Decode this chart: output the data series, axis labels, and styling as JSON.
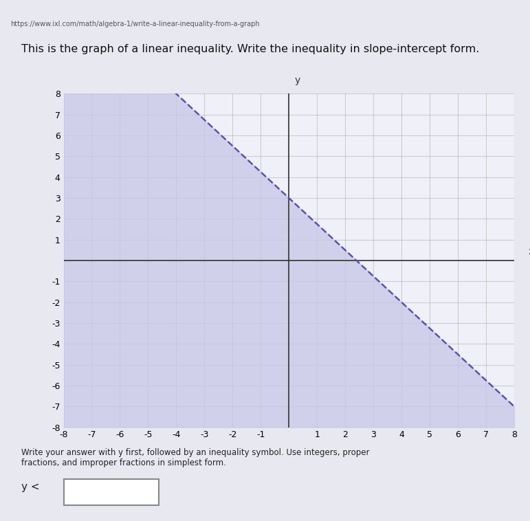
{
  "title": "This is the graph of a linear inequality. Write the inequality in slope-intercept form.",
  "slope": -1.25,
  "y_intercept": 3,
  "x_intercept": 2.4,
  "xlim": [
    -8,
    8
  ],
  "ylim": [
    -8,
    8
  ],
  "shade_color": "#c8c8e8",
  "shade_alpha": 0.55,
  "line_color": "#5555aa",
  "line_style": "--",
  "line_width": 1.8,
  "grid_color": "#aaaaaa",
  "grid_alpha": 0.5,
  "background_color": "#f0f0f8",
  "axis_color": "#555555",
  "tick_fontsize": 9,
  "inequality": "y < -5/4 x + 3",
  "answer_label": "y <",
  "answer_box_text": "y <",
  "url_text": "https://www.ixl.com/math/algebra-1/write-a-linear-inequality-from-a-graph",
  "subtitle": "Write your answer with y first, followed by an inequality symbol. Use integers, proper\nfractions, and improper fractions in simplest form.",
  "answer_prefix": "y <"
}
